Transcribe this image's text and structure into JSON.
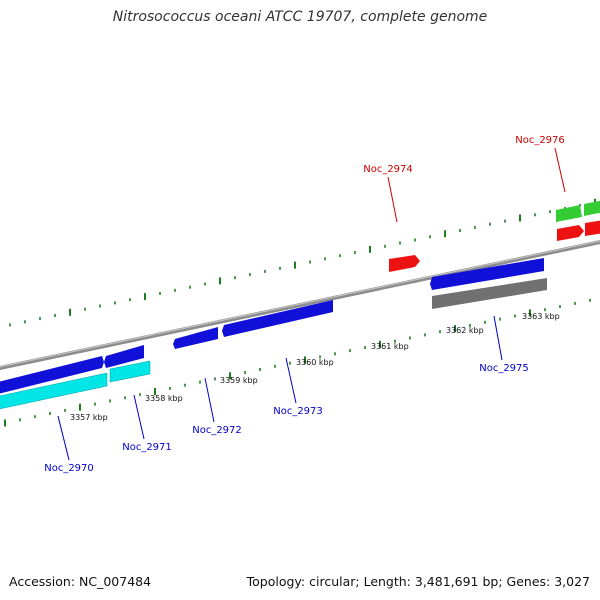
{
  "title": "Nitrosococcus oceani ATCC 19707, complete genome",
  "footer": {
    "accession": "Accession: NC_007484",
    "topology": "Topology: circular; Length: 3,481,691 bp; Genes: 3,027"
  },
  "colors": {
    "backbone": "#8c8c8c",
    "tick": "#1e7d1e",
    "gene_label": "#0000cc",
    "rna_label": "#cc0000",
    "cds": "#1010d8",
    "cds_highlight": "#4040ff",
    "cyan_track": "#00e5e5",
    "green_track": "#33cc33",
    "grey_track": "#707070",
    "red_feature": "#ee1111"
  },
  "scale_labels": [
    {
      "text": "3357 kbp"
    },
    {
      "text": "3358 kbp"
    },
    {
      "text": "3359 kbp"
    },
    {
      "text": "3360 kbp"
    },
    {
      "text": "3361 kbp"
    },
    {
      "text": "3362 kbp"
    },
    {
      "text": "3363 kbp"
    }
  ],
  "gene_labels": [
    {
      "text": "Noc_2970",
      "kind": "gene"
    },
    {
      "text": "Noc_2971",
      "kind": "gene"
    },
    {
      "text": "Noc_2972",
      "kind": "gene"
    },
    {
      "text": "Noc_2973",
      "kind": "gene"
    },
    {
      "text": "Noc_2974",
      "kind": "rna"
    },
    {
      "text": "Noc_2975",
      "kind": "gene"
    },
    {
      "text": "Noc_2976",
      "kind": "rna"
    }
  ]
}
